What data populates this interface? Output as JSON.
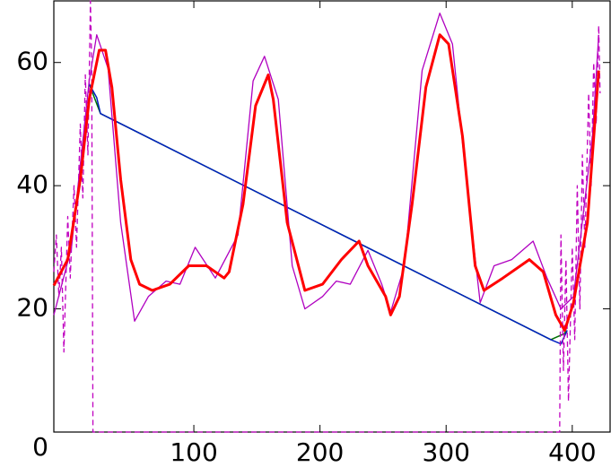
{
  "chart_data": {
    "type": "line",
    "xlim": [
      -11,
      430
    ],
    "ylim": [
      0,
      70
    ],
    "xticks": [
      100,
      200,
      300,
      400
    ],
    "yticks": [
      0,
      20,
      40,
      60
    ],
    "series": [
      {
        "color": "#007000",
        "line_width": 1.5,
        "dashed": false,
        "x": [
          17,
          26,
          383,
          394,
          401
        ],
        "values": [
          56.5,
          51.7,
          15,
          16,
          21
        ]
      },
      {
        "color": "#0020c0",
        "line_width": 1.5,
        "dashed": false,
        "x": [
          17,
          23,
          26,
          383,
          391,
          396
        ],
        "values": [
          56.5,
          54.3,
          51.7,
          15,
          14.3,
          16.5
        ]
      },
      {
        "color": "#b000c0",
        "line_width": 1.3,
        "dashed": false,
        "x": [
          -11,
          3,
          17,
          23,
          32,
          42,
          53,
          64,
          78,
          89,
          101,
          117,
          135,
          147,
          156,
          167,
          178,
          188,
          202,
          213,
          224,
          238,
          249,
          256,
          267,
          281,
          295,
          305,
          316,
          327,
          338,
          352,
          369,
          380,
          391,
          401,
          416,
          421
        ],
        "values": [
          19,
          30,
          57,
          64.5,
          59,
          34,
          18,
          22,
          24.5,
          24,
          30,
          25,
          32,
          57,
          61,
          54,
          27,
          20,
          22,
          24.5,
          24,
          29.5,
          24,
          19.5,
          27,
          58.7,
          68,
          63,
          41,
          21,
          27,
          28,
          31,
          25,
          20,
          22,
          48,
          64.5
        ]
      },
      {
        "color": "#c000c0",
        "line_width": 1.3,
        "dashed": true,
        "x": [
          -11,
          -9,
          -7,
          -5,
          -3,
          0,
          2,
          5,
          7,
          10,
          12,
          14,
          16,
          18,
          19,
          20,
          390,
          391,
          393,
          395,
          397,
          400,
          402,
          404,
          406,
          408,
          410,
          413,
          415,
          417,
          419,
          421,
          422
        ],
        "values": [
          26,
          32,
          22,
          30,
          13,
          35,
          25,
          40,
          30,
          50,
          38,
          58,
          45,
          70,
          60,
          0,
          0,
          32,
          10,
          28,
          5,
          30,
          15,
          40,
          20,
          45,
          30,
          55,
          40,
          60,
          50,
          66,
          55
        ]
      },
      {
        "color": "#ff0000",
        "line_width": 3,
        "dashed": false,
        "x": [
          -11,
          0,
          10,
          17,
          25,
          30,
          35,
          42,
          50,
          57,
          67,
          81,
          96,
          110,
          124,
          128,
          139,
          149,
          159,
          163,
          174,
          188,
          202,
          217,
          231,
          238,
          252,
          256,
          263,
          273,
          284,
          295,
          302,
          313,
          323,
          330,
          345,
          366,
          377,
          387,
          394,
          401,
          412,
          421
        ],
        "values": [
          23.8,
          28,
          41,
          54,
          62,
          62,
          56,
          41,
          28,
          24,
          23,
          24,
          27,
          27,
          25,
          26,
          37,
          53,
          58,
          54,
          34,
          23,
          24,
          28,
          31,
          27,
          22,
          19,
          22,
          37,
          56,
          64.5,
          63,
          48,
          27,
          23,
          25,
          28,
          26,
          19,
          16.5,
          21,
          34,
          58.7
        ]
      }
    ]
  }
}
